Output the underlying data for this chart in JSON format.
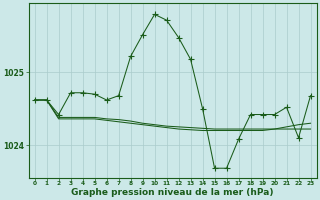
{
  "background_color": "#cce8e8",
  "grid_color": "#aacccc",
  "line_color": "#1a5c1a",
  "xlabel": "Graphe pression niveau de la mer (hPa)",
  "xlabel_fontsize": 6.5,
  "xtick_labels": [
    "0",
    "1",
    "2",
    "3",
    "4",
    "5",
    "6",
    "7",
    "8",
    "9",
    "10",
    "11",
    "12",
    "13",
    "14",
    "15",
    "16",
    "17",
    "18",
    "19",
    "20",
    "21",
    "22",
    "23"
  ],
  "ytick_values": [
    1024,
    1025
  ],
  "ylim": [
    1023.55,
    1025.95
  ],
  "xlim": [
    -0.5,
    23.5
  ],
  "series1_x": [
    0,
    1,
    2,
    3,
    4,
    5,
    6,
    7,
    8,
    9,
    10,
    11,
    12,
    13,
    14,
    15,
    16,
    17,
    18,
    19,
    20,
    21,
    22,
    23
  ],
  "series1_y": [
    1024.62,
    1024.62,
    1024.42,
    1024.72,
    1024.72,
    1024.7,
    1024.62,
    1024.68,
    1025.22,
    1025.52,
    1025.8,
    1025.72,
    1025.48,
    1025.18,
    1024.5,
    1023.68,
    1023.68,
    1024.08,
    1024.42,
    1024.42,
    1024.42,
    1024.52,
    1024.1,
    1024.68
  ],
  "series2_x": [
    0,
    1,
    2,
    3,
    4,
    5,
    6,
    7,
    8,
    9,
    10,
    11,
    12,
    13,
    14,
    15,
    16,
    17,
    18,
    19,
    20,
    21,
    22,
    23
  ],
  "series2_y": [
    1024.62,
    1024.62,
    1024.38,
    1024.38,
    1024.38,
    1024.38,
    1024.36,
    1024.35,
    1024.33,
    1024.3,
    1024.28,
    1024.26,
    1024.25,
    1024.24,
    1024.23,
    1024.22,
    1024.22,
    1024.22,
    1024.22,
    1024.22,
    1024.22,
    1024.22,
    1024.22,
    1024.22
  ],
  "series3_x": [
    0,
    1,
    2,
    3,
    4,
    5,
    6,
    7,
    8,
    9,
    10,
    11,
    12,
    13,
    14,
    15,
    16,
    17,
    18,
    19,
    20,
    21,
    22,
    23
  ],
  "series3_y": [
    1024.62,
    1024.62,
    1024.36,
    1024.36,
    1024.36,
    1024.36,
    1024.34,
    1024.32,
    1024.3,
    1024.28,
    1024.26,
    1024.24,
    1024.22,
    1024.21,
    1024.2,
    1024.2,
    1024.2,
    1024.2,
    1024.2,
    1024.2,
    1024.22,
    1024.25,
    1024.28,
    1024.3
  ]
}
